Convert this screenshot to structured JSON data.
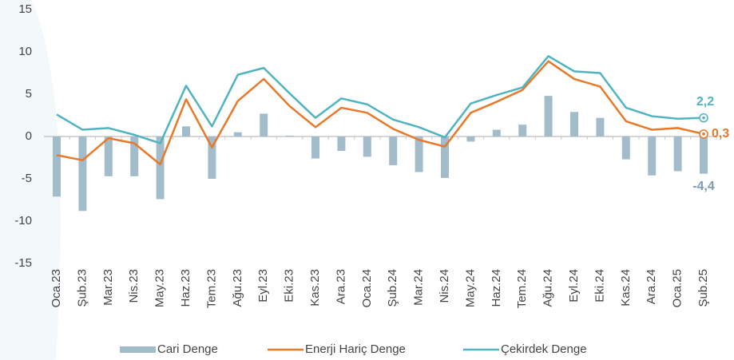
{
  "chart_data": {
    "type": "combo",
    "categories": [
      "Oca.23",
      "Şub.23",
      "Mar.23",
      "Nis.23",
      "May.23",
      "Haz.23",
      "Tem.23",
      "Ağu.23",
      "Eyl.23",
      "Eki.23",
      "Kas.23",
      "Ara.23",
      "Oca.24",
      "Şub.24",
      "Mar.24",
      "Nis.24",
      "May.24",
      "Haz.24",
      "Tem.24",
      "Ağu.24",
      "Eyl.24",
      "Eki.24",
      "Kas.24",
      "Ara.24",
      "Oca.25",
      "Şub.25"
    ],
    "series": [
      {
        "name": "Cari Denge",
        "kind": "bar",
        "color": "#a3bccb",
        "label_color": "#7d9db1",
        "values": [
          -7.1,
          -8.8,
          -4.7,
          -4.7,
          -7.4,
          1.2,
          -5.0,
          0.5,
          2.7,
          0.1,
          -2.6,
          -1.7,
          -2.4,
          -3.4,
          -4.2,
          -4.9,
          -0.6,
          0.8,
          1.4,
          4.8,
          2.9,
          2.2,
          -2.7,
          -4.6,
          -4.1,
          -4.4
        ],
        "value_labels": [
          null,
          null,
          null,
          null,
          null,
          null,
          null,
          null,
          null,
          null,
          null,
          null,
          null,
          null,
          null,
          null,
          null,
          null,
          null,
          null,
          null,
          null,
          null,
          null,
          null,
          "-4,4"
        ]
      },
      {
        "name": "Enerji Hariç Denge",
        "kind": "line",
        "color": "#e8792a",
        "label_color": "#e8792a",
        "values": [
          -2.2,
          -2.8,
          -0.2,
          -0.8,
          -3.3,
          4.4,
          -1.3,
          4.2,
          6.8,
          3.6,
          1.1,
          3.4,
          2.8,
          0.9,
          -0.4,
          -1.2,
          2.8,
          4.1,
          5.5,
          8.9,
          6.8,
          5.9,
          1.8,
          0.8,
          1.0,
          0.3
        ],
        "value_labels": [
          null,
          null,
          null,
          null,
          null,
          null,
          null,
          null,
          null,
          null,
          null,
          null,
          null,
          null,
          null,
          null,
          null,
          null,
          null,
          null,
          null,
          null,
          null,
          null,
          null,
          "0,3"
        ]
      },
      {
        "name": "Çekirdek Denge",
        "kind": "line",
        "color": "#4fb4c0",
        "label_color": "#4fb4c0",
        "values": [
          2.6,
          0.8,
          1.0,
          0.2,
          -0.8,
          6.0,
          1.2,
          7.3,
          8.1,
          5.1,
          2.2,
          4.5,
          3.8,
          2.0,
          1.1,
          -0.1,
          3.9,
          4.9,
          5.8,
          9.5,
          7.7,
          7.5,
          3.4,
          2.4,
          2.1,
          2.2
        ],
        "value_labels": [
          null,
          null,
          null,
          null,
          null,
          null,
          null,
          null,
          null,
          null,
          null,
          null,
          null,
          null,
          null,
          null,
          null,
          null,
          null,
          null,
          null,
          null,
          null,
          null,
          null,
          "2,2"
        ]
      }
    ],
    "ylim": [
      -15,
      15
    ],
    "yticks": [
      -15,
      -10,
      -5,
      0,
      5,
      10,
      15
    ],
    "grid": false,
    "legend": "bottom"
  }
}
